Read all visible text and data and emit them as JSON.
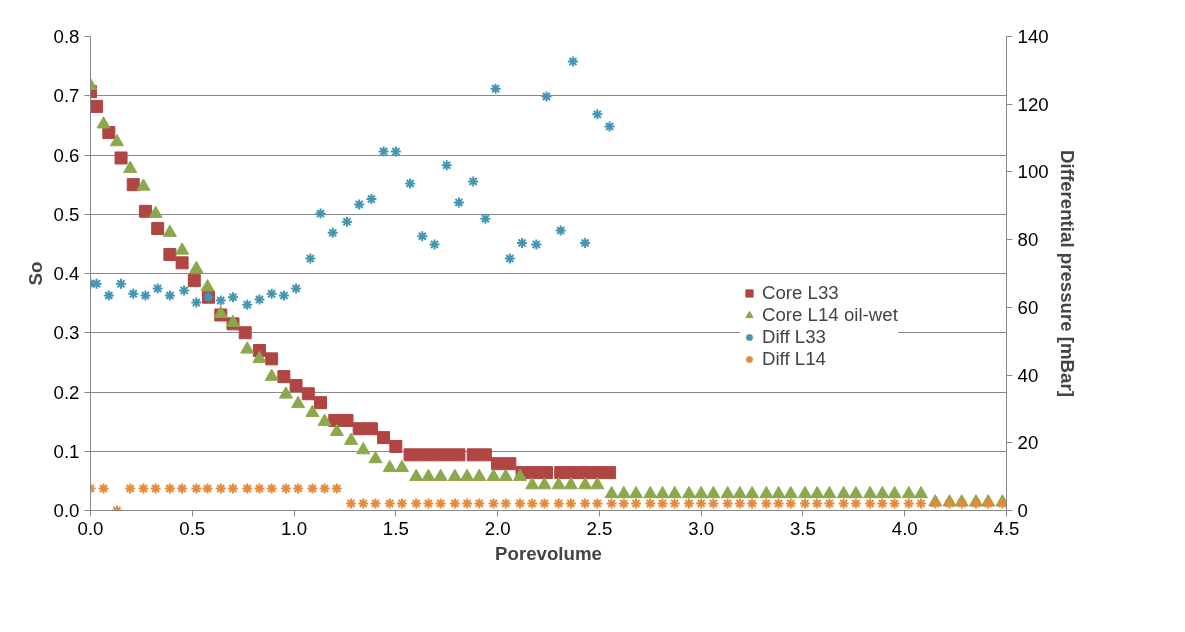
{
  "chart_data": {
    "type": "scatter",
    "xlabel": "Porevolume",
    "ylabel": "So",
    "y2label": "Differential pressure [mBar]",
    "xlim": [
      0,
      4.5
    ],
    "ylim": [
      0,
      0.8
    ],
    "y2lim": [
      0,
      140
    ],
    "xticks": [
      {
        "value": 0,
        "label": "0.0"
      },
      {
        "value": 0.5,
        "label": "0.5"
      },
      {
        "value": 1,
        "label": "1.0"
      },
      {
        "value": 1.5,
        "label": "1.5"
      },
      {
        "value": 2,
        "label": "2.0"
      },
      {
        "value": 2.5,
        "label": "2.5"
      },
      {
        "value": 3,
        "label": "3.0"
      },
      {
        "value": 3.5,
        "label": "3.5"
      },
      {
        "value": 4,
        "label": "4.0"
      },
      {
        "value": 4.5,
        "label": "4.5"
      }
    ],
    "yticks": [
      {
        "value": 0,
        "label": "0.0"
      },
      {
        "value": 0.1,
        "label": "0.1"
      },
      {
        "value": 0.2,
        "label": "0.2"
      },
      {
        "value": 0.3,
        "label": "0.3"
      },
      {
        "value": 0.4,
        "label": "0.4"
      },
      {
        "value": 0.5,
        "label": "0.5"
      },
      {
        "value": 0.6,
        "label": "0.6"
      },
      {
        "value": 0.7,
        "label": "0.7"
      },
      {
        "value": 0.8,
        "label": "0.8"
      }
    ],
    "y2ticks": [
      0,
      20,
      40,
      60,
      80,
      100,
      120,
      140
    ],
    "grid": "y",
    "legend": "right",
    "series": [
      {
        "name": "Core L33",
        "color": "#b04543",
        "marker": "square",
        "x": [
          0,
          0.03,
          0.09,
          0.15,
          0.21,
          0.27,
          0.33,
          0.39,
          0.45,
          0.51,
          0.58,
          0.64,
          0.7,
          0.76,
          0.83,
          0.89,
          0.95,
          1.01,
          1.07,
          1.13,
          1.2,
          1.26,
          1.32,
          1.38,
          1.44,
          1.5,
          1.57,
          1.63,
          1.69,
          1.75,
          1.81,
          1.88,
          1.94,
          2.0,
          2.06,
          2.12,
          2.18,
          2.24,
          2.31,
          2.37,
          2.43,
          2.49,
          2.55
        ],
        "values": [
          0.707,
          0.682,
          0.638,
          0.595,
          0.55,
          0.505,
          0.476,
          0.432,
          0.418,
          0.388,
          0.36,
          0.33,
          0.315,
          0.3,
          0.27,
          0.256,
          0.226,
          0.211,
          0.197,
          0.182,
          0.152,
          0.152,
          0.138,
          0.138,
          0.123,
          0.108,
          0.094,
          0.094,
          0.094,
          0.094,
          0.094,
          0.094,
          0.094,
          0.079,
          0.079,
          0.064,
          0.064,
          0.064,
          0.064,
          0.064,
          0.064,
          0.064,
          0.064
        ]
      },
      {
        "name": "Core L14 oil-wet",
        "color": "#8ba84b",
        "marker": "triangle",
        "x": [
          0,
          0.064,
          0.13,
          0.195,
          0.26,
          0.32,
          0.39,
          0.45,
          0.52,
          0.575,
          0.64,
          0.7,
          0.77,
          0.83,
          0.89,
          0.96,
          1.02,
          1.09,
          1.15,
          1.21,
          1.28,
          1.34,
          1.4,
          1.47,
          1.53,
          1.6,
          1.66,
          1.72,
          1.79,
          1.85,
          1.91,
          1.98,
          2.04,
          2.11,
          2.17,
          2.23,
          2.3,
          2.36,
          2.43,
          2.49,
          2.56,
          2.62,
          2.68,
          2.75,
          2.81,
          2.87,
          2.94,
          3.0,
          3.06,
          3.13,
          3.19,
          3.25,
          3.32,
          3.38,
          3.44,
          3.51,
          3.57,
          3.63,
          3.7,
          3.76,
          3.83,
          3.89,
          3.95,
          4.02,
          4.08,
          4.15,
          4.22,
          4.28,
          4.35,
          4.41,
          4.48
        ],
        "values": [
          0.717,
          0.652,
          0.622,
          0.577,
          0.547,
          0.501,
          0.469,
          0.439,
          0.408,
          0.377,
          0.332,
          0.317,
          0.272,
          0.256,
          0.226,
          0.196,
          0.18,
          0.165,
          0.15,
          0.133,
          0.118,
          0.102,
          0.087,
          0.072,
          0.072,
          0.057,
          0.057,
          0.057,
          0.057,
          0.057,
          0.057,
          0.057,
          0.057,
          0.057,
          0.043,
          0.043,
          0.043,
          0.043,
          0.043,
          0.043,
          0.028,
          0.028,
          0.028,
          0.028,
          0.028,
          0.028,
          0.028,
          0.028,
          0.028,
          0.028,
          0.028,
          0.028,
          0.028,
          0.028,
          0.028,
          0.028,
          0.028,
          0.028,
          0.028,
          0.028,
          0.028,
          0.028,
          0.028,
          0.028,
          0.028,
          0.014,
          0.014,
          0.014,
          0.014,
          0.014,
          0.014
        ]
      },
      {
        "name": "Diff L33",
        "color": "#4196b4",
        "marker": "cross",
        "axis": "y2",
        "x": [
          0,
          0.03,
          0.09,
          0.15,
          0.21,
          0.27,
          0.33,
          0.39,
          0.46,
          0.52,
          0.58,
          0.64,
          0.7,
          0.77,
          0.83,
          0.89,
          0.95,
          1.01,
          1.08,
          1.13,
          1.19,
          1.26,
          1.32,
          1.38,
          1.44,
          1.5,
          1.57,
          1.63,
          1.69,
          1.75,
          1.81,
          1.88,
          1.94,
          1.99,
          2.06,
          2.12,
          2.19,
          2.24,
          2.31,
          2.37,
          2.43,
          2.49,
          2.55
        ],
        "values": [
          67,
          67,
          63.5,
          67,
          64,
          63.5,
          65.6,
          63.5,
          65,
          61.4,
          63,
          62,
          63,
          60.8,
          62.3,
          64,
          63.5,
          65.6,
          74.4,
          87.7,
          82,
          85.3,
          90.4,
          92,
          106,
          106,
          96.6,
          81,
          78.6,
          102,
          91,
          97.2,
          86.2,
          124.6,
          74.4,
          79,
          78.6,
          122.3,
          82.7,
          132.6,
          79,
          117,
          113.4
        ]
      },
      {
        "name": "Diff L14",
        "color": "#e48a3a",
        "marker": "cross",
        "axis": "y2",
        "x": [
          0,
          0.064,
          0.13,
          0.195,
          0.26,
          0.32,
          0.39,
          0.45,
          0.52,
          0.575,
          0.64,
          0.7,
          0.77,
          0.83,
          0.89,
          0.96,
          1.02,
          1.09,
          1.15,
          1.21,
          1.28,
          1.34,
          1.4,
          1.47,
          1.53,
          1.6,
          1.66,
          1.72,
          1.79,
          1.85,
          1.91,
          1.98,
          2.04,
          2.11,
          2.17,
          2.23,
          2.3,
          2.36,
          2.43,
          2.49,
          2.56,
          2.62,
          2.68,
          2.75,
          2.81,
          2.87,
          2.94,
          3.0,
          3.06,
          3.13,
          3.19,
          3.25,
          3.32,
          3.38,
          3.44,
          3.51,
          3.57,
          3.63,
          3.7,
          3.76,
          3.83,
          3.89,
          3.95,
          4.02,
          4.08,
          4.15,
          4.22,
          4.28,
          4.35,
          4.41,
          4.48
        ],
        "values": [
          6.5,
          6.5,
          0,
          6.5,
          6.5,
          6.5,
          6.5,
          6.5,
          6.5,
          6.5,
          6.5,
          6.5,
          6.5,
          6.5,
          6.5,
          6.5,
          6.5,
          6.5,
          6.5,
          6.5,
          2.1,
          2.1,
          2.1,
          2.1,
          2.1,
          2.1,
          2.1,
          2.1,
          2.1,
          2.1,
          2.1,
          2.1,
          2.1,
          2.1,
          2.1,
          2.1,
          2.1,
          2.1,
          2.1,
          2.1,
          2.1,
          2.1,
          2.1,
          2.1,
          2.1,
          2.1,
          2.1,
          2.1,
          2.1,
          2.1,
          2.1,
          2.1,
          2.1,
          2.1,
          2.1,
          2.1,
          2.1,
          2.1,
          2.1,
          2.1,
          2.1,
          2.1,
          2.1,
          2.1,
          2.1,
          2.1,
          2.1,
          2.1,
          2.1,
          2.1,
          2.1
        ]
      }
    ]
  }
}
